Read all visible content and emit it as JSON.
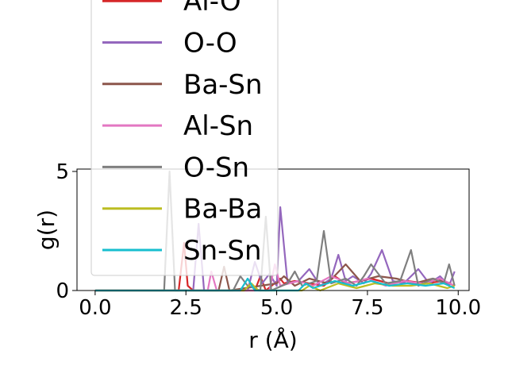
{
  "chart_data": {
    "type": "line",
    "xlabel": "r (Å)",
    "ylabel": "g(r)",
    "xlim": [
      -0.5,
      10.3
    ],
    "ylim": [
      0,
      5.1
    ],
    "x_ticks": [
      "0.0",
      "2.5",
      "5.0",
      "7.5",
      "10.0"
    ],
    "y_ticks": [
      "0",
      "5"
    ],
    "grid": false,
    "legend_placement": "upper-left, overflowing above the axes",
    "series": [
      {
        "name": "Al-O",
        "color": "#d62728",
        "x": [
          0,
          2.3,
          2.45,
          2.55,
          2.7,
          4.4,
          4.55,
          4.7,
          5.1,
          5.2,
          5.5,
          6.3,
          6.6,
          6.9,
          7.3,
          7.6,
          8.1,
          8.6,
          9.1,
          9.6,
          9.9
        ],
        "y": [
          0,
          0,
          2.0,
          0.2,
          0,
          0,
          0.6,
          0,
          0.5,
          0.3,
          0.4,
          0.2,
          0.6,
          0.3,
          0.4,
          0.5,
          0.3,
          0.4,
          0.3,
          0.4,
          0.2
        ]
      },
      {
        "name": "O-O",
        "color": "#9467bd",
        "x": [
          0,
          2.7,
          2.85,
          3.0,
          4.2,
          4.4,
          4.6,
          4.8,
          5.0,
          5.1,
          5.3,
          5.6,
          5.9,
          6.2,
          6.5,
          6.7,
          6.9,
          7.1,
          7.4,
          7.6,
          7.9,
          8.2,
          8.5,
          8.9,
          9.2,
          9.5,
          9.75,
          9.9
        ],
        "y": [
          0,
          0,
          2.8,
          0,
          0,
          1.2,
          0.3,
          0.7,
          0.2,
          3.5,
          0.3,
          0.4,
          0.9,
          0.2,
          0.5,
          1.5,
          0.4,
          0.6,
          0.3,
          0.7,
          1.7,
          0.4,
          0.3,
          0.9,
          0.3,
          0.6,
          0.2,
          0.8
        ]
      },
      {
        "name": "Ba-Sn",
        "color": "#8c564b",
        "x": [
          0,
          3.4,
          3.55,
          3.7,
          5.0,
          5.2,
          5.5,
          5.9,
          6.4,
          6.9,
          7.3,
          7.8,
          8.3,
          8.8,
          9.3,
          9.8
        ],
        "y": [
          0,
          0,
          1.0,
          0,
          0.3,
          0.6,
          0.2,
          0.5,
          0.3,
          1.1,
          0.4,
          0.6,
          0.5,
          0.3,
          0.5,
          0.3
        ]
      },
      {
        "name": "Al-Sn",
        "color": "#e377c2",
        "x": [
          0,
          3.1,
          3.2,
          3.35,
          4.8,
          4.95,
          5.1,
          5.6,
          6.0,
          6.5,
          7.0,
          7.5,
          8.0,
          8.5,
          9.0,
          9.5,
          9.9
        ],
        "y": [
          0,
          0,
          0.8,
          0,
          0,
          1.1,
          0.2,
          0.4,
          0.2,
          0.6,
          0.3,
          0.5,
          0.2,
          0.4,
          0.3,
          0.5,
          0.2
        ]
      },
      {
        "name": "O-Sn",
        "color": "#7f7f7f",
        "x": [
          0,
          1.9,
          2.05,
          2.2,
          3.8,
          4.0,
          4.2,
          4.55,
          4.7,
          4.85,
          5.3,
          5.5,
          5.7,
          6.1,
          6.3,
          6.5,
          6.9,
          7.2,
          7.4,
          7.6,
          8.0,
          8.4,
          8.7,
          8.9,
          9.3,
          9.6,
          9.75,
          9.9
        ],
        "y": [
          0,
          0,
          5.0,
          0,
          0,
          0.6,
          0.2,
          0,
          3.1,
          0,
          0.3,
          0.8,
          0.2,
          0.4,
          2.5,
          0.3,
          0.5,
          0.2,
          0.6,
          1.1,
          0.3,
          0.4,
          1.7,
          0.2,
          0.5,
          0.3,
          1.1,
          0.2
        ]
      },
      {
        "name": "Ba-Ba",
        "color": "#bcbd22",
        "x": [
          0,
          4.1,
          4.3,
          4.5,
          5.7,
          5.9,
          6.2,
          6.7,
          7.2,
          7.7,
          8.2,
          8.7,
          9.2,
          9.7,
          9.9
        ],
        "y": [
          0,
          0,
          0.3,
          0,
          0,
          0.2,
          0,
          0.3,
          0.1,
          0.3,
          0.2,
          0.2,
          0.3,
          0.1,
          0.2
        ]
      },
      {
        "name": "Sn-Sn",
        "color": "#17becf",
        "x": [
          0,
          4.0,
          4.2,
          4.4,
          5.6,
          5.8,
          6.0,
          6.6,
          7.1,
          7.6,
          8.1,
          8.6,
          9.1,
          9.6,
          9.9
        ],
        "y": [
          0,
          0,
          0.5,
          0,
          0,
          0.3,
          0.1,
          0.4,
          0.2,
          0.4,
          0.2,
          0.3,
          0.2,
          0.3,
          0.1
        ]
      }
    ]
  }
}
